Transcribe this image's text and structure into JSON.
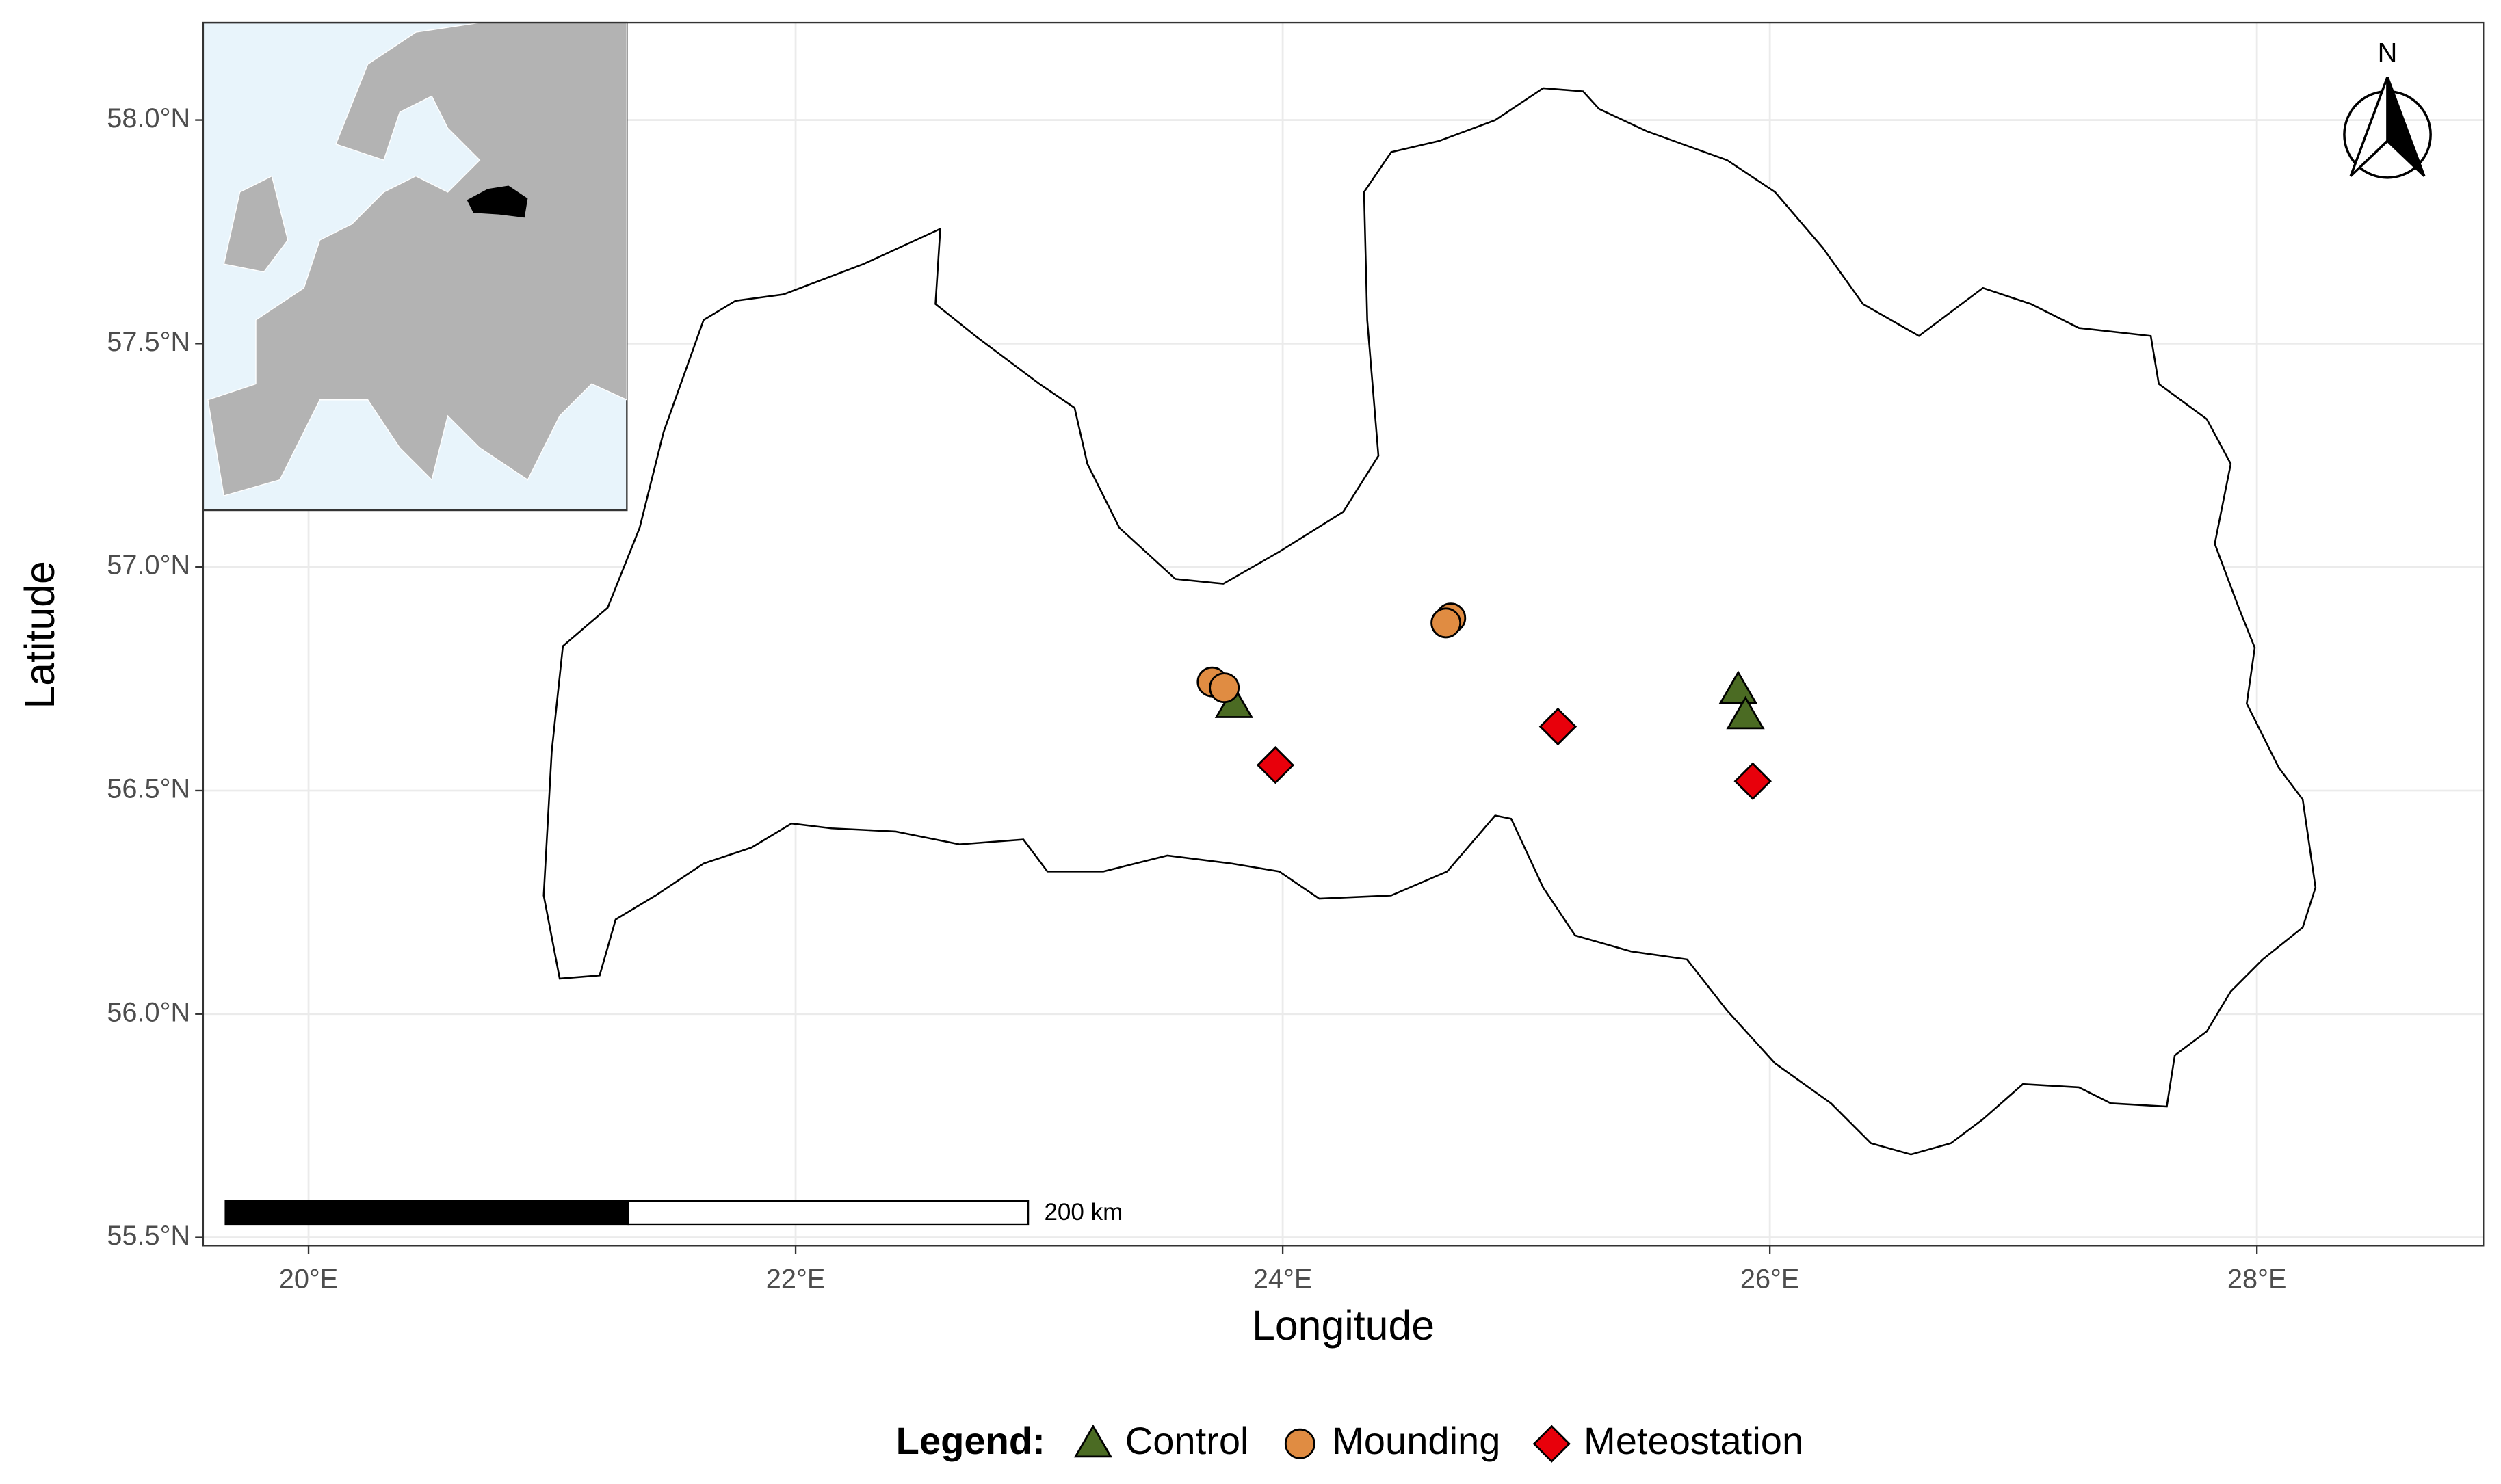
{
  "chart_data": {
    "type": "scatter",
    "x_label": "Longitude",
    "y_label": "Latitude",
    "xlim": [
      19.567,
      28.93
    ],
    "ylim": [
      55.482,
      58.218
    ],
    "xticks": [
      {
        "value": 20,
        "label": "20°E"
      },
      {
        "value": 22,
        "label": "22°E"
      },
      {
        "value": 24,
        "label": "24°E"
      },
      {
        "value": 26,
        "label": "26°E"
      },
      {
        "value": 28,
        "label": "28°E"
      }
    ],
    "yticks": [
      {
        "value": 55.5,
        "label": "55.5°N"
      },
      {
        "value": 56.0,
        "label": "56.0°N"
      },
      {
        "value": 56.5,
        "label": "56.5°N"
      },
      {
        "value": 57.0,
        "label": "57.0°N"
      },
      {
        "value": 57.5,
        "label": "57.5°N"
      },
      {
        "value": 58.0,
        "label": "58.0°N"
      }
    ],
    "grid": true,
    "legend_title": "Legend:",
    "legend_position": "bottom",
    "scale_bar_label": "200 km",
    "north_label": "N",
    "series": [
      {
        "name": "Control",
        "color": "#4b6b23",
        "marker": "triangle",
        "x": [
          23.8,
          25.87,
          25.9
        ],
        "values": [
          56.693,
          56.725,
          56.668
        ]
      },
      {
        "name": "Mounding",
        "color": "#e08c42",
        "marker": "circle",
        "x": [
          23.71,
          23.76,
          24.69,
          24.67
        ],
        "values": [
          56.743,
          56.73,
          56.886,
          56.875
        ]
      },
      {
        "name": "Meteostation",
        "color": "#e8000b",
        "marker": "diamond",
        "x": [
          23.97,
          25.13,
          25.93
        ],
        "values": [
          56.557,
          56.643,
          56.521
        ]
      }
    ]
  }
}
